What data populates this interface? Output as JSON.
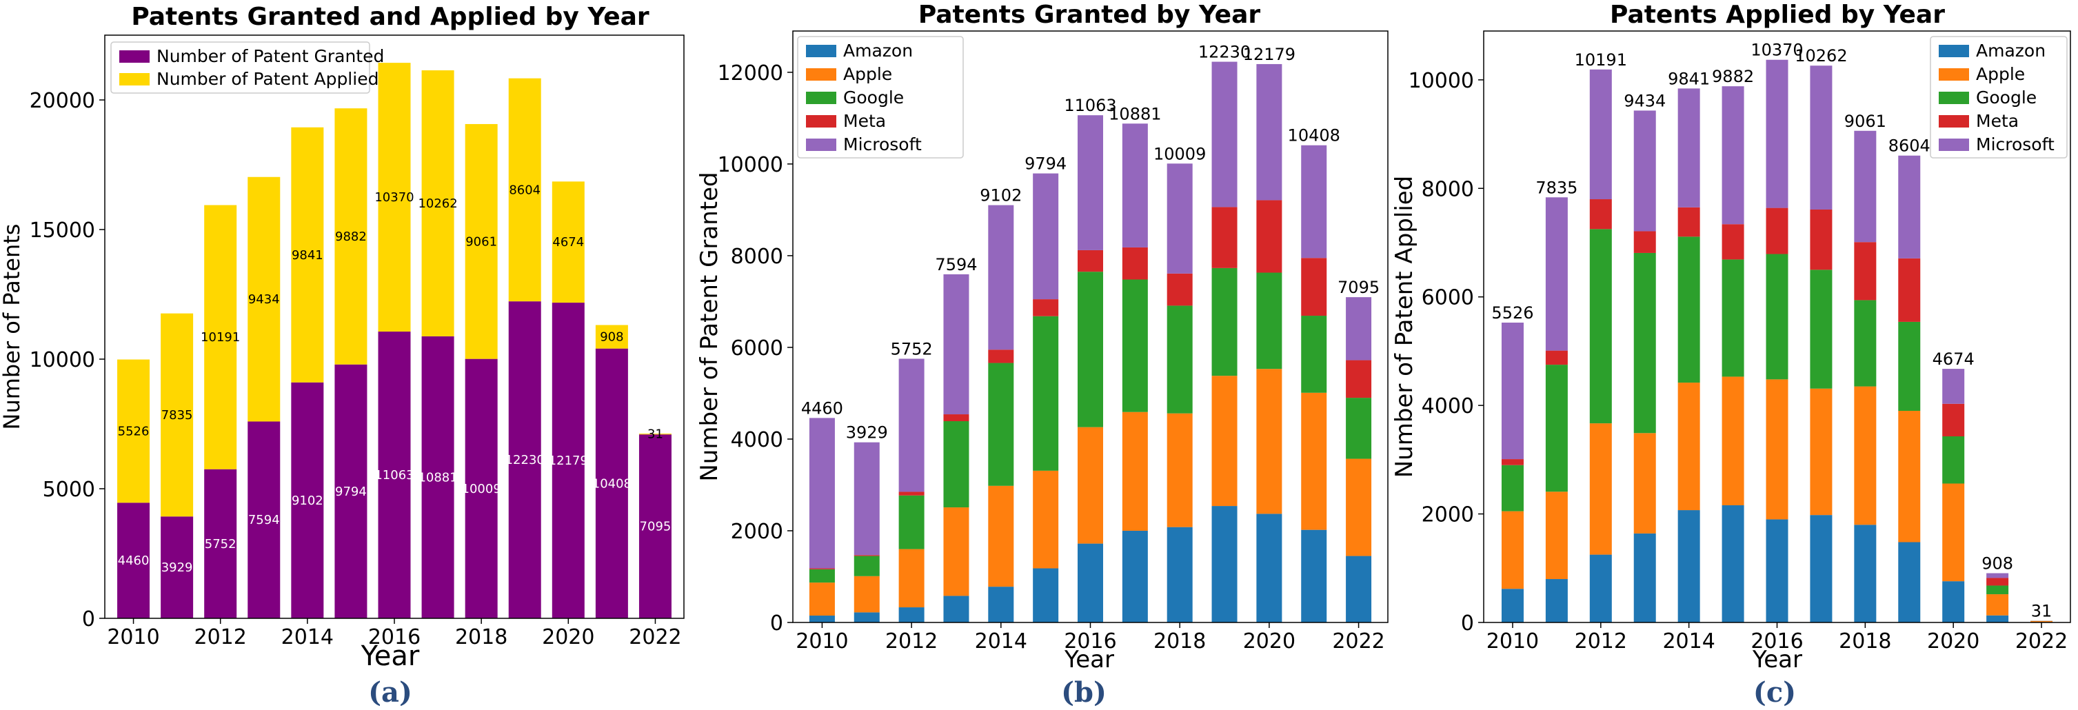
{
  "chart_data": [
    {
      "type": "bar",
      "stacked": true,
      "title": "Patents Granted and Applied by Year",
      "xlabel": "Year",
      "ylabel": "Number of Patents",
      "caption": "(a)",
      "categories": [
        "2010",
        "2011",
        "2012",
        "2013",
        "2014",
        "2015",
        "2016",
        "2017",
        "2018",
        "2019",
        "2020",
        "2021",
        "2022"
      ],
      "x_ticks": [
        "2010",
        "2012",
        "2014",
        "2016",
        "2018",
        "2020",
        "2022"
      ],
      "y_ticks": [
        "0",
        "5000",
        "10000",
        "15000",
        "20000"
      ],
      "ylim": [
        0,
        22500
      ],
      "legend_position": "top-left",
      "series": [
        {
          "name": "Number of Patent Granted",
          "color": "#800080",
          "label_color": "#ffffff",
          "values": [
            4460,
            3929,
            5752,
            7594,
            9102,
            9794,
            11063,
            10881,
            10009,
            12230,
            12179,
            10408,
            7095
          ]
        },
        {
          "name": "Number of Patent Applied",
          "color": "#ffd700",
          "label_color": "#000000",
          "values": [
            5526,
            7835,
            10191,
            9434,
            9841,
            9882,
            10370,
            10262,
            9061,
            8604,
            4674,
            908,
            31
          ]
        }
      ]
    },
    {
      "type": "bar",
      "stacked": true,
      "title": "Patents Granted by Year",
      "xlabel": "Year",
      "ylabel": "Number of Patent Granted",
      "caption": "(b)",
      "categories": [
        "2010",
        "2011",
        "2012",
        "2013",
        "2014",
        "2015",
        "2016",
        "2017",
        "2018",
        "2019",
        "2020",
        "2021",
        "2022"
      ],
      "x_ticks": [
        "2010",
        "2012",
        "2014",
        "2016",
        "2018",
        "2020",
        "2022"
      ],
      "y_ticks": [
        "0",
        "2000",
        "4000",
        "6000",
        "8000",
        "10000",
        "12000"
      ],
      "ylim": [
        0,
        12900
      ],
      "legend_position": "top-left",
      "totals": [
        "4460",
        "3929",
        "5752",
        "7594",
        "9102",
        "9794",
        "11063",
        "10881",
        "10009",
        "12230",
        "12179",
        "10408",
        "7095"
      ],
      "series": [
        {
          "name": "Amazon",
          "color": "#1f77b4",
          "values": [
            150,
            220,
            330,
            580,
            780,
            1180,
            1720,
            2000,
            2080,
            2540,
            2370,
            2020,
            1450
          ]
        },
        {
          "name": "Apple",
          "color": "#ff7f0e",
          "values": [
            720,
            790,
            1270,
            1930,
            2200,
            2130,
            2540,
            2590,
            2480,
            2840,
            3160,
            2990,
            2120
          ]
        },
        {
          "name": "Google",
          "color": "#2ca02c",
          "values": [
            290,
            440,
            1170,
            1880,
            2680,
            3370,
            3390,
            2890,
            2350,
            2350,
            2100,
            1680,
            1330
          ]
        },
        {
          "name": "Meta",
          "color": "#d62728",
          "values": [
            20,
            20,
            80,
            150,
            290,
            370,
            470,
            700,
            700,
            1330,
            1580,
            1260,
            820
          ]
        },
        {
          "name": "Microsoft",
          "color": "#9467bd",
          "values": [
            3280,
            2459,
            2902,
            3054,
            3152,
            2744,
            2943,
            2701,
            2399,
            3170,
            2969,
            2458,
            1375
          ]
        }
      ]
    },
    {
      "type": "bar",
      "stacked": true,
      "title": "Patents Applied by Year",
      "xlabel": "Year",
      "ylabel": "Number of Patent Applied",
      "caption": "(c)",
      "categories": [
        "2010",
        "2011",
        "2012",
        "2013",
        "2014",
        "2015",
        "2016",
        "2017",
        "2018",
        "2019",
        "2020",
        "2021",
        "2022"
      ],
      "x_ticks": [
        "2010",
        "2012",
        "2014",
        "2016",
        "2018",
        "2020",
        "2022"
      ],
      "y_ticks": [
        "0",
        "2000",
        "4000",
        "6000",
        "8000",
        "10000"
      ],
      "ylim": [
        0,
        10900
      ],
      "legend_position": "top-right",
      "totals": [
        "5526",
        "7835",
        "10191",
        "9434",
        "9841",
        "9882",
        "10370",
        "10262",
        "9061",
        "8604",
        "4674",
        "908",
        "31"
      ],
      "series": [
        {
          "name": "Amazon",
          "color": "#1f77b4",
          "values": [
            620,
            800,
            1250,
            1640,
            2070,
            2160,
            1900,
            1980,
            1800,
            1480,
            760,
            130,
            5
          ]
        },
        {
          "name": "Apple",
          "color": "#ff7f0e",
          "values": [
            1430,
            1610,
            2420,
            1850,
            2350,
            2370,
            2580,
            2330,
            2550,
            2420,
            1800,
            390,
            20
          ]
        },
        {
          "name": "Google",
          "color": "#2ca02c",
          "values": [
            850,
            2340,
            3580,
            3320,
            2690,
            2160,
            2310,
            2190,
            1590,
            1640,
            870,
            160,
            3
          ]
        },
        {
          "name": "Meta",
          "color": "#d62728",
          "values": [
            110,
            260,
            550,
            400,
            540,
            650,
            850,
            1110,
            1070,
            1170,
            600,
            140,
            2
          ]
        },
        {
          "name": "Microsoft",
          "color": "#9467bd",
          "values": [
            2516,
            2825,
            2391,
            2224,
            2191,
            2542,
            2730,
            2652,
            2051,
            1894,
            644,
            88,
            1
          ]
        }
      ]
    }
  ]
}
